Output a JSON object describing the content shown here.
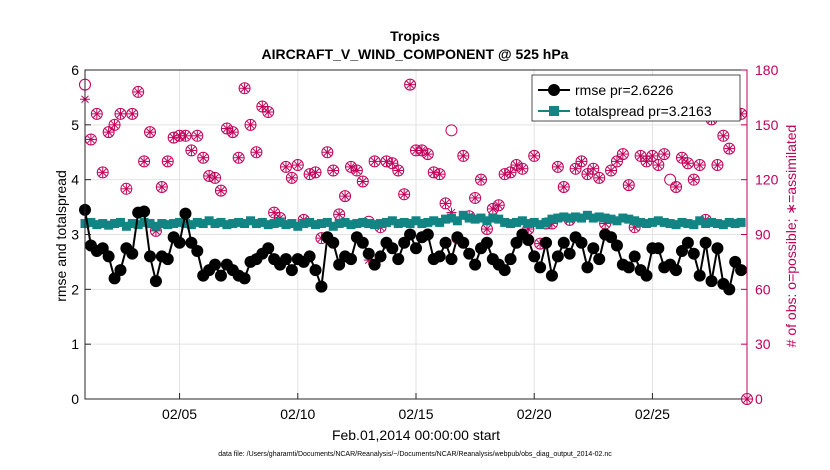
{
  "chart_data": {
    "type": "line",
    "title": "Tropics",
    "subtitle": "AIRCRAFT_V_WIND_COMPONENT @ 525 hPa",
    "xlabel": "Feb.01,2014 00:00:00 start",
    "ylabel_left": "rmse and totalspread",
    "ylabel_right": "# of obs: o=possible; ∗=assimilated",
    "ylim_left": [
      0,
      6
    ],
    "ylim_right": [
      0,
      180
    ],
    "xlim": [
      1,
      29
    ],
    "x_ticks": [
      5,
      10,
      15,
      20,
      25
    ],
    "x_tick_labels": [
      "02/05",
      "02/10",
      "02/15",
      "02/20",
      "02/25"
    ],
    "y_ticks_left": [
      0,
      1,
      2,
      3,
      4,
      5,
      6
    ],
    "y_ticks_right": [
      0,
      30,
      60,
      90,
      120,
      150,
      180
    ],
    "grid": true,
    "legend_placement": "top-right",
    "colors": {
      "rmse": "#000000",
      "totalspread": "#128484",
      "obs": "#c0005a"
    },
    "series": [
      {
        "name": "rmse pr=2.6226",
        "axis": "left",
        "x": [
          1.0,
          1.25,
          1.5,
          1.75,
          2.0,
          2.25,
          2.5,
          2.75,
          3.0,
          3.25,
          3.5,
          3.75,
          4.0,
          4.25,
          4.5,
          4.75,
          5.0,
          5.25,
          5.5,
          5.75,
          6.0,
          6.25,
          6.5,
          6.75,
          7.0,
          7.25,
          7.5,
          7.75,
          8.0,
          8.25,
          8.5,
          8.75,
          9.0,
          9.25,
          9.5,
          9.75,
          10.0,
          10.25,
          10.5,
          10.75,
          11.0,
          11.25,
          11.5,
          11.75,
          12.0,
          12.25,
          12.5,
          12.75,
          13.0,
          13.25,
          13.5,
          13.75,
          14.0,
          14.25,
          14.5,
          14.75,
          15.0,
          15.25,
          15.5,
          15.75,
          16.0,
          16.25,
          16.5,
          16.75,
          17.0,
          17.25,
          17.5,
          17.75,
          18.0,
          18.25,
          18.5,
          18.75,
          19.0,
          19.25,
          19.5,
          19.75,
          20.0,
          20.25,
          20.5,
          20.75,
          21.0,
          21.25,
          21.5,
          21.75,
          22.0,
          22.25,
          22.5,
          22.75,
          23.0,
          23.25,
          23.5,
          23.75,
          24.0,
          24.25,
          24.5,
          24.75,
          25.0,
          25.25,
          25.5,
          25.75,
          26.0,
          26.25,
          26.5,
          26.75,
          27.0,
          27.25,
          27.5,
          27.75,
          28.0,
          28.25,
          28.5,
          28.75
        ],
        "values": [
          3.45,
          2.8,
          2.7,
          2.75,
          2.6,
          2.2,
          2.35,
          2.75,
          2.65,
          3.4,
          3.42,
          2.6,
          2.15,
          2.6,
          2.55,
          2.95,
          2.85,
          3.38,
          2.85,
          2.7,
          2.25,
          2.35,
          2.45,
          2.25,
          2.45,
          2.35,
          2.25,
          2.2,
          2.5,
          2.55,
          2.65,
          2.75,
          2.55,
          2.45,
          2.55,
          2.35,
          2.55,
          2.5,
          2.6,
          2.35,
          2.05,
          2.95,
          2.85,
          2.45,
          2.6,
          2.55,
          2.95,
          2.85,
          2.65,
          2.45,
          2.6,
          2.85,
          2.75,
          2.55,
          2.85,
          3.0,
          2.75,
          2.95,
          3.0,
          2.55,
          2.6,
          2.85,
          2.55,
          2.95,
          2.85,
          2.65,
          2.45,
          2.75,
          2.85,
          2.55,
          2.45,
          2.35,
          2.55,
          2.85,
          3.0,
          2.9,
          2.6,
          2.4,
          2.85,
          2.25,
          2.6,
          2.85,
          2.65,
          2.95,
          2.85,
          2.4,
          2.75,
          2.55,
          3.0,
          2.95,
          2.8,
          2.45,
          2.4,
          2.6,
          2.35,
          2.25,
          2.75,
          2.75,
          2.4,
          2.45,
          2.35,
          2.7,
          2.85,
          2.65,
          2.25,
          2.85,
          2.15,
          2.75,
          2.1,
          2.0,
          2.5,
          2.35
        ]
      },
      {
        "name": "totalspread pr=3.2163",
        "axis": "left",
        "x": [
          1.0,
          1.25,
          1.5,
          1.75,
          2.0,
          2.25,
          2.5,
          2.75,
          3.0,
          3.25,
          3.5,
          3.75,
          4.0,
          4.25,
          4.5,
          4.75,
          5.0,
          5.25,
          5.5,
          5.75,
          6.0,
          6.25,
          6.5,
          6.75,
          7.0,
          7.25,
          7.5,
          7.75,
          8.0,
          8.25,
          8.5,
          8.75,
          9.0,
          9.25,
          9.5,
          9.75,
          10.0,
          10.25,
          10.5,
          10.75,
          11.0,
          11.25,
          11.5,
          11.75,
          12.0,
          12.25,
          12.5,
          12.75,
          13.0,
          13.25,
          13.5,
          13.75,
          14.0,
          14.25,
          14.5,
          14.75,
          15.0,
          15.25,
          15.5,
          15.75,
          16.0,
          16.25,
          16.5,
          16.75,
          17.0,
          17.25,
          17.5,
          17.75,
          18.0,
          18.25,
          18.5,
          18.75,
          19.0,
          19.25,
          19.5,
          19.75,
          20.0,
          20.25,
          20.5,
          20.75,
          21.0,
          21.25,
          21.5,
          21.75,
          22.0,
          22.25,
          22.5,
          22.75,
          23.0,
          23.25,
          23.5,
          23.75,
          24.0,
          24.25,
          24.5,
          24.75,
          25.0,
          25.25,
          25.5,
          25.75,
          26.0,
          26.25,
          26.5,
          26.75,
          27.0,
          27.25,
          27.5,
          27.75,
          28.0,
          28.25,
          28.5,
          28.75
        ],
        "values": [
          3.2,
          3.22,
          3.18,
          3.2,
          3.17,
          3.2,
          3.22,
          3.15,
          3.2,
          3.18,
          3.22,
          3.2,
          3.15,
          3.2,
          3.18,
          3.2,
          3.22,
          3.2,
          3.18,
          3.22,
          3.2,
          3.25,
          3.2,
          3.22,
          3.18,
          3.2,
          3.22,
          3.2,
          3.25,
          3.2,
          3.22,
          3.18,
          3.2,
          3.22,
          3.18,
          3.2,
          3.15,
          3.2,
          3.22,
          3.18,
          3.2,
          3.22,
          3.15,
          3.2,
          3.22,
          3.18,
          3.2,
          3.22,
          3.2,
          3.18,
          3.2,
          3.22,
          3.25,
          3.2,
          3.22,
          3.2,
          3.25,
          3.2,
          3.22,
          3.25,
          3.22,
          3.28,
          3.3,
          3.25,
          3.35,
          3.3,
          3.28,
          3.3,
          3.25,
          3.3,
          3.28,
          3.22,
          3.2,
          3.22,
          3.25,
          3.2,
          3.22,
          3.18,
          3.22,
          3.28,
          3.3,
          3.32,
          3.3,
          3.32,
          3.3,
          3.35,
          3.3,
          3.32,
          3.3,
          3.28,
          3.25,
          3.3,
          3.28,
          3.25,
          3.22,
          3.2,
          3.22,
          3.25,
          3.22,
          3.2,
          3.18,
          3.22,
          3.2,
          3.18,
          3.25,
          3.2,
          3.22,
          3.2,
          3.18,
          3.22,
          3.2,
          3.22
        ]
      },
      {
        "name": "obs possible",
        "axis": "right",
        "x": [
          1.0,
          1.25,
          1.5,
          1.75,
          2.0,
          2.25,
          2.5,
          2.75,
          3.0,
          3.25,
          3.5,
          3.75,
          4.0,
          4.25,
          4.5,
          4.75,
          5.0,
          5.25,
          5.5,
          5.75,
          6.0,
          6.25,
          6.5,
          6.75,
          7.0,
          7.25,
          7.5,
          7.75,
          8.0,
          8.25,
          8.5,
          8.75,
          9.0,
          9.25,
          9.5,
          9.75,
          10.0,
          10.25,
          10.5,
          10.75,
          11.0,
          11.25,
          11.5,
          11.75,
          12.0,
          12.25,
          12.5,
          12.75,
          13.0,
          13.25,
          13.5,
          13.75,
          14.0,
          14.25,
          14.5,
          14.75,
          15.0,
          15.25,
          15.5,
          15.75,
          16.0,
          16.25,
          16.5,
          16.75,
          17.0,
          17.25,
          17.5,
          17.75,
          18.0,
          18.25,
          18.5,
          18.75,
          19.0,
          19.25,
          19.5,
          19.75,
          20.0,
          20.25,
          20.5,
          20.75,
          21.0,
          21.25,
          21.5,
          21.75,
          22.0,
          22.25,
          22.5,
          22.75,
          23.0,
          23.25,
          23.5,
          23.75,
          24.0,
          24.25,
          24.5,
          24.75,
          25.0,
          25.25,
          25.5,
          25.75,
          26.0,
          26.25,
          26.5,
          26.75,
          27.0,
          27.25,
          27.5,
          27.75,
          28.0,
          28.25,
          28.5,
          28.75
        ],
        "values": [
          172,
          142,
          156,
          124,
          146,
          150,
          156,
          115,
          156,
          168,
          130,
          146,
          92,
          116,
          130,
          143,
          144,
          144,
          136,
          144,
          132,
          122,
          121,
          114,
          148,
          146,
          132,
          170,
          150,
          135,
          160,
          157,
          102,
          99,
          127,
          121,
          128,
          98,
          123,
          124,
          88,
          135,
          125,
          101,
          111,
          127,
          125,
          119,
          97,
          130,
          94,
          130,
          129,
          125,
          112,
          172,
          136,
          136,
          134,
          124,
          123,
          107,
          147,
          88,
          133,
          100,
          110,
          120,
          93,
          104,
          106,
          123,
          124,
          128,
          126,
          93,
          133,
          85,
          96,
          96,
          127,
          116,
          98,
          126,
          130,
          123,
          126,
          121,
          96,
          125,
          130,
          134,
          117,
          94,
          133,
          130,
          133,
          128,
          134,
          120,
          116,
          132,
          129,
          120,
          128,
          98,
          153,
          128,
          144,
          137,
          156,
          156
        ]
      },
      {
        "name": "obs assimilated",
        "axis": "right",
        "x": [
          1.0,
          1.25,
          1.5,
          1.75,
          2.0,
          2.25,
          2.5,
          2.75,
          3.0,
          3.25,
          3.5,
          3.75,
          4.0,
          4.25,
          4.5,
          4.75,
          5.0,
          5.25,
          5.5,
          5.75,
          6.0,
          6.25,
          6.5,
          6.75,
          7.0,
          7.25,
          7.5,
          7.75,
          8.0,
          8.25,
          8.5,
          8.75,
          9.0,
          9.25,
          9.5,
          9.75,
          10.0,
          10.25,
          10.5,
          10.75,
          11.0,
          11.25,
          11.5,
          11.75,
          12.0,
          12.25,
          12.5,
          12.75,
          13.0,
          13.25,
          13.5,
          13.75,
          14.0,
          14.25,
          14.5,
          14.75,
          15.0,
          15.25,
          15.5,
          15.75,
          16.0,
          16.25,
          16.5,
          16.75,
          17.0,
          17.25,
          17.5,
          17.75,
          18.0,
          18.25,
          18.5,
          18.75,
          19.0,
          19.25,
          19.5,
          19.75,
          20.0,
          20.25,
          20.5,
          20.75,
          21.0,
          21.25,
          21.5,
          21.75,
          22.0,
          22.25,
          22.5,
          22.75,
          23.0,
          23.25,
          23.5,
          23.75,
          24.0,
          24.25,
          24.5,
          24.75,
          25.0,
          25.25,
          25.5,
          25.75,
          26.0,
          26.25,
          26.5,
          26.75,
          27.0,
          27.25,
          27.5,
          27.75,
          28.0,
          28.25,
          28.5,
          28.75
        ],
        "values": [
          164,
          142,
          156,
          124,
          146,
          150,
          156,
          115,
          156,
          168,
          130,
          146,
          92,
          116,
          130,
          143,
          144,
          144,
          136,
          144,
          132,
          122,
          121,
          114,
          148,
          146,
          132,
          170,
          150,
          135,
          160,
          157,
          102,
          99,
          127,
          121,
          128,
          98,
          123,
          124,
          88,
          135,
          125,
          101,
          111,
          127,
          125,
          119,
          76,
          130,
          94,
          130,
          129,
          125,
          112,
          172,
          136,
          136,
          134,
          124,
          123,
          107,
          102,
          88,
          133,
          100,
          110,
          120,
          93,
          104,
          106,
          123,
          124,
          128,
          126,
          93,
          133,
          85,
          96,
          96,
          127,
          116,
          98,
          126,
          130,
          123,
          126,
          121,
          96,
          125,
          130,
          134,
          117,
          94,
          133,
          130,
          133,
          128,
          134,
          72,
          116,
          132,
          129,
          120,
          128,
          98,
          153,
          128,
          144,
          137,
          156,
          156
        ]
      }
    ],
    "extra_point": {
      "x": 29,
      "value": 0,
      "axis": "right"
    }
  },
  "legend": {
    "rmse": "rmse pr=2.6226",
    "totalspread": "totalspread pr=3.2163"
  },
  "footer_text": "data file: /Users/gharamti/Documents/NCAR/Reanalysis/~/Documents/NCAR/Reanalysis/webpub/obs_diag_output_2014-02.nc"
}
